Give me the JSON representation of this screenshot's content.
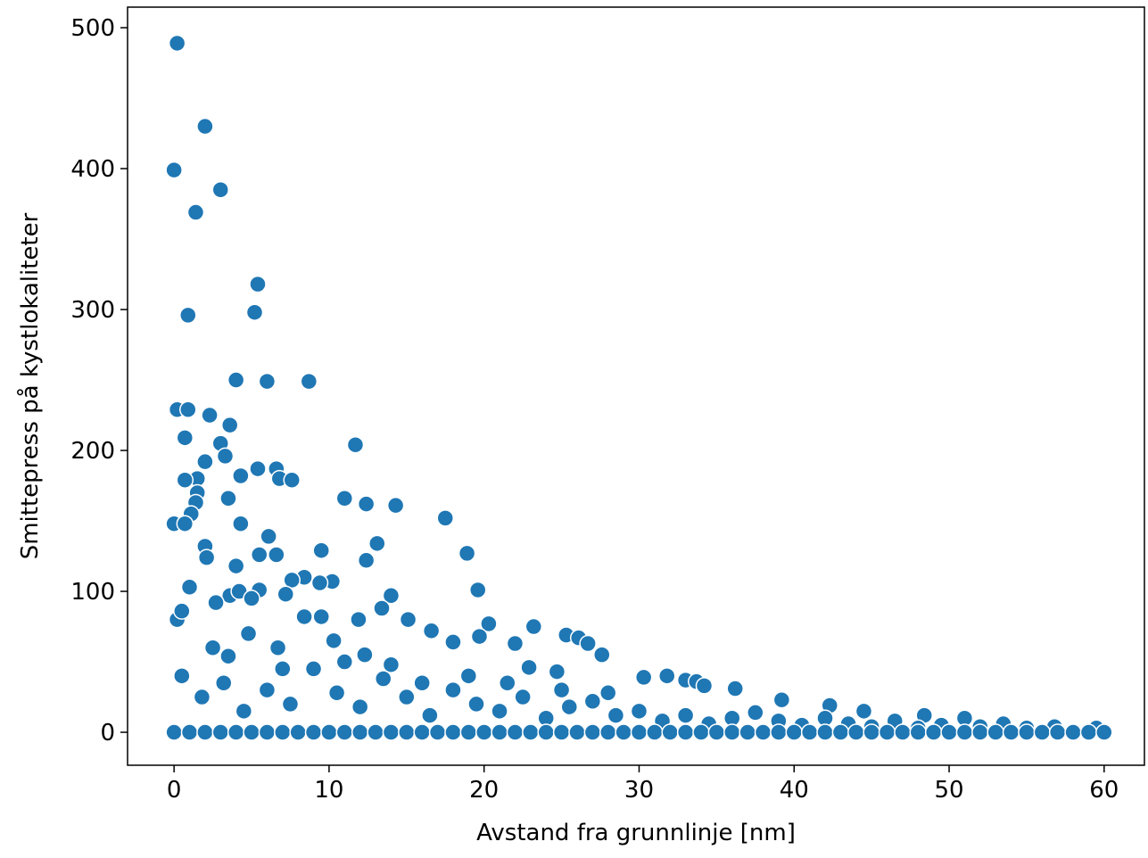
{
  "chart_data": {
    "type": "scatter",
    "xlabel": "Avstand fra grunnlinje [nm]",
    "ylabel": "Smittepress på kystlokaliteter",
    "xlim": [
      -3,
      62.6
    ],
    "ylim": [
      -23.4,
      514.6
    ],
    "xticks": [
      0,
      10,
      20,
      30,
      40,
      50,
      60
    ],
    "yticks": [
      0,
      100,
      200,
      300,
      400,
      500
    ],
    "color": "#1f77b4",
    "x": [
      0.2,
      2,
      0,
      3,
      1.4,
      5.4,
      5.2,
      0.9,
      4,
      6,
      8.7,
      0.2,
      0.9,
      2.3,
      3.6,
      0.7,
      3,
      11.7,
      3.3,
      2,
      5.4,
      6.6,
      6.8,
      7.6,
      1.5,
      0.7,
      4.3,
      3.5,
      11,
      12.4,
      14.3,
      1.5,
      1.4,
      1.1,
      17.5,
      0,
      0.7,
      4.3,
      6.1,
      13.1,
      2,
      9.5,
      18.9,
      5.5,
      6.6,
      2.1,
      12.4,
      4,
      8.4,
      7.6,
      10.2,
      9.4,
      19.6,
      5.5,
      1,
      3.6,
      14,
      7.2,
      4.2,
      11.9,
      15.1,
      20.3,
      23.2,
      16.6,
      25.3,
      26.1,
      26.7,
      22,
      18,
      27.6,
      19.7,
      22.9,
      24.7,
      30.3,
      31.8,
      33,
      33.7,
      34.2,
      36.2,
      39.2,
      42.3,
      44.5,
      48.4,
      51,
      13.4,
      0.2,
      0.5,
      2.7,
      5,
      8.4,
      9.5,
      10.3,
      12.3,
      3.5,
      6.7,
      0.5,
      1.8,
      3.2,
      4.5,
      6,
      7.5,
      9,
      10.5,
      12,
      13.5,
      15,
      16.5,
      18,
      19.5,
      21,
      22.5,
      24,
      25.5,
      27,
      28.5,
      30,
      31.5,
      33,
      34.5,
      36,
      37.5,
      39,
      40.5,
      42,
      43.5,
      45,
      46.5,
      48,
      49.5,
      52,
      53.5,
      55,
      56.8,
      59.5,
      2.5,
      4.8,
      7,
      11,
      14,
      16,
      19,
      21.5,
      25,
      28,
      0,
      1,
      2,
      3,
      4,
      5,
      6,
      7,
      8,
      9,
      10,
      11,
      12,
      13,
      14,
      15,
      16,
      17,
      18,
      19,
      20,
      21,
      22,
      23,
      24,
      25,
      26,
      27,
      28,
      29,
      30,
      31,
      32,
      33,
      34,
      35,
      36,
      37,
      38,
      39,
      40,
      41,
      42,
      43,
      44,
      45,
      46,
      47,
      48,
      49,
      50,
      51,
      52,
      53,
      54,
      55,
      56,
      57,
      58,
      59,
      60
    ],
    "values": [
      489,
      430,
      399,
      385,
      369,
      318,
      298,
      296,
      250,
      249,
      249,
      229,
      229,
      225,
      218,
      209,
      205,
      204,
      196,
      192,
      187,
      187,
      180,
      179,
      180,
      179,
      182,
      166,
      166,
      162,
      161,
      170,
      163,
      155,
      152,
      148,
      148,
      148,
      139,
      134,
      132,
      129,
      127,
      126,
      126,
      124,
      122,
      118,
      110,
      108,
      107,
      106,
      101,
      101,
      103,
      97,
      97,
      98,
      100,
      80,
      80,
      77,
      75,
      72,
      69,
      67,
      63,
      63,
      64,
      55,
      68,
      46,
      43,
      39,
      40,
      37,
      36,
      33,
      31,
      23,
      19,
      15,
      12,
      10,
      88,
      80,
      86,
      92,
      95,
      82,
      82,
      65,
      55,
      54,
      60,
      40,
      25,
      35,
      15,
      30,
      20,
      45,
      28,
      18,
      38,
      25,
      12,
      30,
      20,
      15,
      25,
      10,
      18,
      22,
      12,
      15,
      8,
      12,
      6,
      10,
      14,
      8,
      5,
      10,
      6,
      4,
      8,
      3,
      5,
      4,
      6,
      3,
      4,
      3,
      60,
      70,
      45,
      50,
      48,
      35,
      40,
      35,
      30,
      28,
      0,
      0,
      0,
      0,
      0,
      0,
      0,
      0,
      0,
      0,
      0,
      0,
      0,
      0,
      0,
      0,
      0,
      0,
      0,
      0,
      0,
      0,
      0,
      0,
      0,
      0,
      0,
      0,
      0,
      0,
      0,
      0,
      0,
      0,
      0,
      0,
      0,
      0,
      0,
      0,
      0,
      0,
      0,
      0,
      0,
      0,
      0,
      0,
      0,
      0,
      0,
      0,
      0,
      0,
      0,
      0,
      0,
      0,
      0,
      0,
      0
    ]
  }
}
